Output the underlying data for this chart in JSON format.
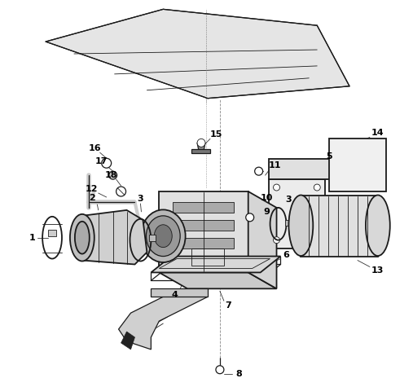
{
  "background_color": "#ffffff",
  "line_color": "#000000",
  "fig_width": 5.07,
  "fig_height": 4.75,
  "dpi": 100
}
